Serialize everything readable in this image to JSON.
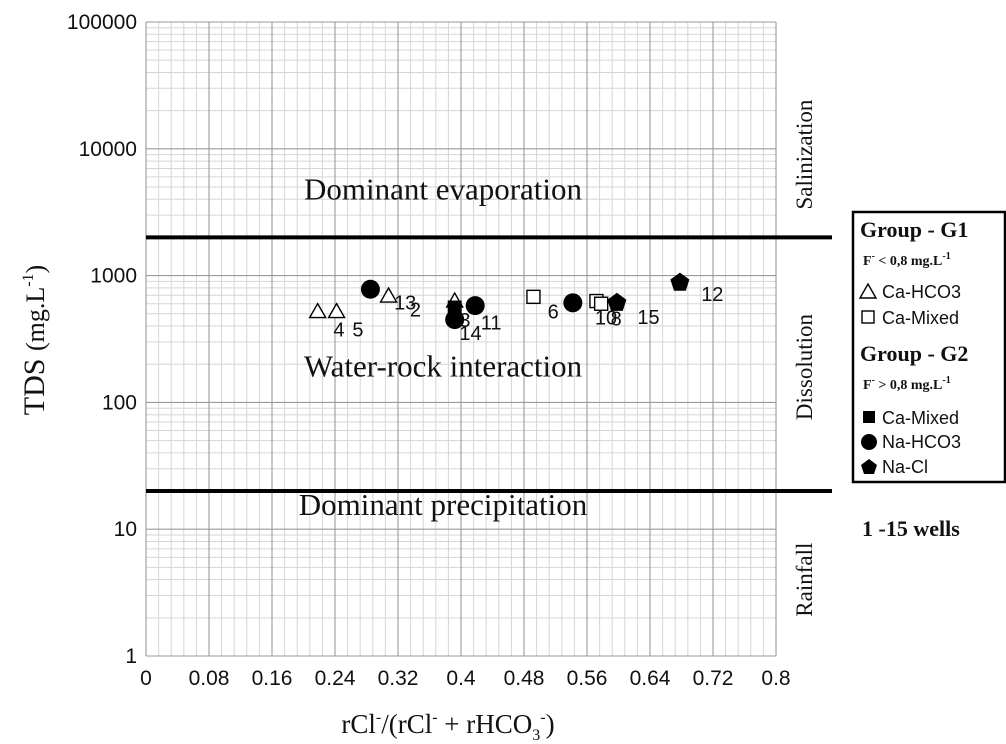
{
  "chart_data": {
    "type": "scatter",
    "xlabel_parts": [
      "rCl",
      "-",
      "/(rCl",
      "-",
      " + rHCO",
      "3",
      "-",
      ")"
    ],
    "ylabel_main": "TDS",
    "ylabel_unit": "(mg.L",
    "ylabel_unit_sup": "-1",
    "ylabel_close": ")",
    "xlim": [
      0,
      0.8
    ],
    "ylim": [
      1,
      100000
    ],
    "y_scale": "log",
    "grid": true,
    "x_ticks": [
      0,
      0.08,
      0.16,
      0.24,
      0.32,
      0.4,
      0.48,
      0.56,
      0.64,
      0.72,
      0.8
    ],
    "x_tick_labels": [
      "0",
      "0.08",
      "0.16",
      "0.24",
      "0.32",
      "0.4",
      "0.48",
      "0.56",
      "0.64",
      "0.72",
      "0.8"
    ],
    "y_ticks": [
      1,
      10,
      100,
      1000,
      10000,
      100000
    ],
    "y_tick_labels": [
      "1",
      "10",
      "100",
      "1000",
      "10000",
      "100000"
    ],
    "threshold_lines": [
      2000,
      20
    ],
    "zone_texts": [
      {
        "text": "Dominant evaporation",
        "y": 4000
      },
      {
        "text": "Water-rock interaction",
        "y": 160
      },
      {
        "text": "Dominant precipitation",
        "y": 13
      }
    ],
    "side_labels": [
      {
        "text": "Salinization",
        "y": 9000
      },
      {
        "text": "Dissolution",
        "y": 190
      },
      {
        "text": "Rainfall",
        "y": 4
      }
    ],
    "series": [
      {
        "name": "Ca-HCO3",
        "marker": "triangle-open",
        "points": [
          [
            0.218,
            520
          ],
          [
            0.242,
            520
          ],
          [
            0.308,
            690
          ],
          [
            0.392,
            630
          ]
        ]
      },
      {
        "name": "Ca-Mixed",
        "marker": "square-open",
        "points": [
          [
            0.492,
            680
          ],
          [
            0.572,
            630
          ],
          [
            0.578,
            600
          ]
        ]
      },
      {
        "name": "Ca-Mixed",
        "marker": "square-filled",
        "points": [
          [
            0.392,
            560
          ]
        ]
      },
      {
        "name": "Na-HCO3",
        "marker": "circle-filled",
        "points": [
          [
            0.285,
            780
          ],
          [
            0.392,
            450
          ],
          [
            0.418,
            580
          ],
          [
            0.542,
            610
          ]
        ]
      },
      {
        "name": "Na-Cl",
        "marker": "pentagon-filled",
        "points": [
          [
            0.598,
            610
          ],
          [
            0.678,
            880
          ]
        ]
      }
    ],
    "point_labels": [
      {
        "text": "13",
        "x": 0.315,
        "y": 540
      },
      {
        "text": "2",
        "x": 0.335,
        "y": 475
      },
      {
        "text": "4",
        "x": 0.238,
        "y": 330
      },
      {
        "text": "5",
        "x": 0.262,
        "y": 330
      },
      {
        "text": "3",
        "x": 0.398,
        "y": 395
      },
      {
        "text": "14",
        "x": 0.398,
        "y": 310
      },
      {
        "text": "11",
        "x": 0.425,
        "y": 375
      },
      {
        "text": "6",
        "x": 0.51,
        "y": 460
      },
      {
        "text": "10",
        "x": 0.57,
        "y": 410
      },
      {
        "text": "8",
        "x": 0.59,
        "y": 405
      },
      {
        "text": "15",
        "x": 0.624,
        "y": 415
      },
      {
        "text": "12",
        "x": 0.705,
        "y": 630
      }
    ],
    "legend": {
      "group1_title": "Group - G1",
      "group1_note": "F",
      "group1_note_sup": "-",
      "group1_note_rest": " < 0,8 mg.L",
      "group1_note_sup2": "-1",
      "group1_items": [
        {
          "marker": "triangle-open",
          "label": "Ca-HCO3"
        },
        {
          "marker": "square-open",
          "label": "Ca-Mixed"
        }
      ],
      "group2_title": "Group - G2",
      "group2_note": "F",
      "group2_note_sup": "-",
      "group2_note_rest": " > 0,8 mg.L",
      "group2_note_sup2": "-1",
      "group2_items": [
        {
          "marker": "square-filled",
          "label": "Ca-Mixed"
        },
        {
          "marker": "circle-filled",
          "label": "Na-HCO3"
        },
        {
          "marker": "pentagon-filled",
          "label": "Na-Cl"
        }
      ]
    },
    "wells_note": "1 -15 wells"
  }
}
